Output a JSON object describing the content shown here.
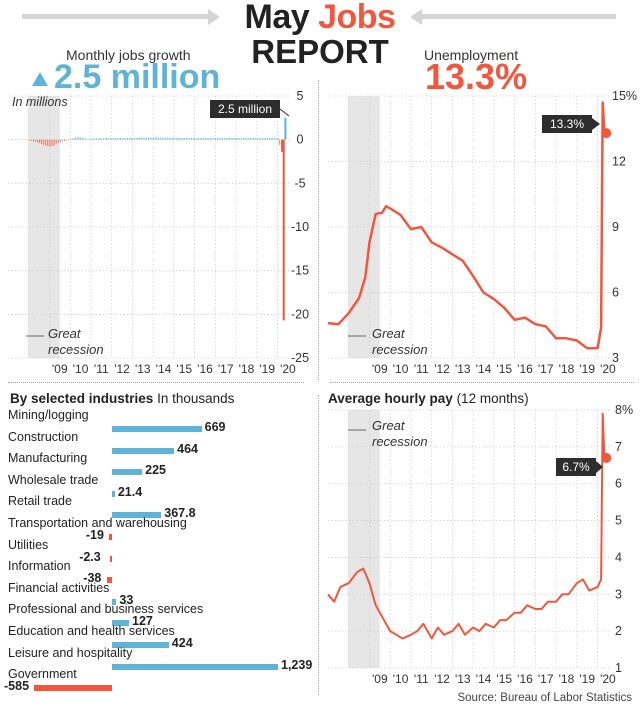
{
  "header": {
    "title_part1": "May",
    "title_part2": "Jobs",
    "title_line2": "REPORT"
  },
  "jobs_header": {
    "label": "Monthly jobs growth",
    "value": "2.5 million",
    "arrow": "up-triangle-icon"
  },
  "unemp_header": {
    "label": "Unemployment",
    "value": "13.3%"
  },
  "colors": {
    "blue": "#5eb3d6",
    "red": "#f2573d",
    "recession": "#e6e6e6",
    "annotation_bg": "#2d2d2d"
  },
  "source": "Source: Bureau of Labor Statistics",
  "chart_data": [
    {
      "id": "monthly_jobs",
      "type": "bar",
      "note": "In millions",
      "annotation": "2.5 million",
      "recession_label": [
        "Great",
        "recession"
      ],
      "recession_range": [
        2007.95,
        2009.5
      ],
      "ylim": [
        -25,
        5
      ],
      "yticks": [
        "5",
        "0",
        "-5",
        "-10",
        "-15",
        "-20",
        "-25"
      ],
      "xticks": [
        "'09",
        "'10",
        "'11",
        "'12",
        "'13",
        "'14",
        "'15",
        "'16",
        "'17",
        "'18",
        "'19",
        "'20"
      ],
      "x_range": [
        2007.0,
        2020.6
      ],
      "series": [
        {
          "x": [
            2008.0,
            2008.2,
            2008.4,
            2008.6,
            2008.8,
            2009.0,
            2009.2,
            2009.4,
            2009.6,
            2009.8,
            2010.0,
            2010.4,
            2010.8,
            2011.0,
            2012.0,
            2013.0,
            2014.0,
            2015.0,
            2016.0,
            2017.0,
            2018.0,
            2019.0,
            2020.0,
            2020.17,
            2020.25,
            2020.33,
            2020.42
          ],
          "values": [
            -0.1,
            -0.2,
            -0.3,
            -0.5,
            -0.7,
            -0.8,
            -0.7,
            -0.4,
            -0.2,
            -0.1,
            0.1,
            0.3,
            0.1,
            0.15,
            0.18,
            0.19,
            0.25,
            0.22,
            0.19,
            0.18,
            0.2,
            0.17,
            0.2,
            -1.4,
            -20.7,
            2.5,
            2.5
          ]
        }
      ]
    },
    {
      "id": "unemployment",
      "type": "line",
      "annotation": "13.3%",
      "recession_label": [
        "Great",
        "recession"
      ],
      "recession_range": [
        2007.95,
        2009.5
      ],
      "ylim": [
        3,
        15
      ],
      "yticks": [
        "15%",
        "12",
        "9",
        "6",
        "3"
      ],
      "xticks": [
        "'09",
        "'10",
        "'11",
        "'12",
        "'13",
        "'14",
        "'15",
        "'16",
        "'17",
        "'18",
        "'19",
        "'20"
      ],
      "x_range": [
        2007.0,
        2020.6
      ],
      "series": [
        {
          "x": [
            2007.0,
            2007.5,
            2008.0,
            2008.5,
            2008.8,
            2009.0,
            2009.3,
            2009.6,
            2009.8,
            2010.0,
            2010.5,
            2011.0,
            2011.5,
            2012.0,
            2012.5,
            2013.0,
            2013.5,
            2014.0,
            2014.5,
            2015.0,
            2015.5,
            2016.0,
            2016.5,
            2017.0,
            2017.5,
            2018.0,
            2018.5,
            2019.0,
            2019.5,
            2020.0,
            2020.17,
            2020.25,
            2020.33,
            2020.42
          ],
          "values": [
            4.6,
            4.6,
            5.0,
            5.6,
            6.8,
            8.3,
            9.5,
            9.8,
            10.0,
            9.8,
            9.4,
            9.0,
            9.0,
            8.2,
            8.2,
            7.8,
            7.4,
            6.6,
            6.1,
            5.7,
            5.2,
            4.9,
            4.9,
            4.5,
            4.3,
            4.0,
            3.9,
            3.7,
            3.6,
            3.5,
            4.4,
            14.7,
            13.3,
            13.3
          ]
        }
      ]
    },
    {
      "id": "industries",
      "type": "bar",
      "title": "By selected industries",
      "unit": "In thousands",
      "categories": [
        "Mining/logging",
        "Construction",
        "Manufacturing",
        "Wholesale trade",
        "Retail trade",
        "Transportation and warehousing",
        "Utilities",
        "Information",
        "Financial activities",
        "Professional and business services",
        "Education and health services",
        "Leisure and hospitality",
        "Government"
      ],
      "values": [
        669,
        464,
        225,
        21.4,
        367.8,
        -19,
        -2.3,
        -38,
        33,
        127,
        424,
        1239,
        -585
      ],
      "value_labels": [
        "669",
        "464",
        "225",
        "21.4",
        "367.8",
        "-19",
        "-2.3",
        "-38",
        "33",
        "127",
        "424",
        "1,239",
        "-585"
      ]
    },
    {
      "id": "hourly_pay",
      "type": "line",
      "title": "Average hourly pay",
      "title_suffix": "(12 months)",
      "annotation": "6.7%",
      "recession_label": [
        "Great",
        "recession"
      ],
      "recession_range": [
        2007.95,
        2009.5
      ],
      "ylim": [
        1,
        8
      ],
      "yticks": [
        "8%",
        "7",
        "6",
        "5",
        "4",
        "3",
        "2",
        "1"
      ],
      "xticks": [
        "'09",
        "'10",
        "'11",
        "'12",
        "'13",
        "'14",
        "'15",
        "'16",
        "'17",
        "'18",
        "'19",
        "'20"
      ],
      "x_range": [
        2007.0,
        2020.6
      ],
      "series": [
        {
          "x": [
            2007.0,
            2007.3,
            2007.6,
            2008.0,
            2008.4,
            2008.7,
            2009.0,
            2009.3,
            2009.6,
            2010.0,
            2010.3,
            2010.6,
            2011.0,
            2011.3,
            2011.6,
            2012.0,
            2012.3,
            2012.6,
            2013.0,
            2013.3,
            2013.6,
            2014.0,
            2014.3,
            2014.6,
            2015.0,
            2015.3,
            2015.6,
            2016.0,
            2016.3,
            2016.6,
            2017.0,
            2017.3,
            2017.6,
            2018.0,
            2018.3,
            2018.6,
            2019.0,
            2019.3,
            2019.6,
            2020.0,
            2020.17,
            2020.25,
            2020.33,
            2020.42
          ],
          "values": [
            3.0,
            2.8,
            3.2,
            3.3,
            3.6,
            3.7,
            3.3,
            2.7,
            2.4,
            2.0,
            1.9,
            1.8,
            1.9,
            2.0,
            2.2,
            1.8,
            2.1,
            1.9,
            2.0,
            2.2,
            1.9,
            2.1,
            2.0,
            2.2,
            2.1,
            2.3,
            2.3,
            2.5,
            2.5,
            2.7,
            2.6,
            2.6,
            2.8,
            2.8,
            3.0,
            3.0,
            3.3,
            3.4,
            3.1,
            3.2,
            3.4,
            7.9,
            6.7,
            6.7
          ]
        }
      ]
    }
  ]
}
